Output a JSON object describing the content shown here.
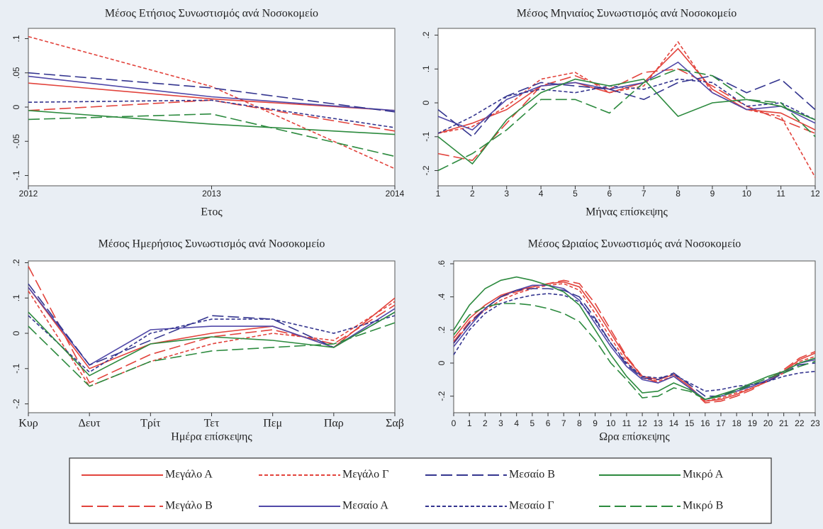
{
  "chart_data": [
    {
      "type": "line",
      "title": "Μέσος Ετήσιος Συνωστισμός ανά Νοσοκομείο",
      "x_label": "Ετος",
      "x": [
        2012,
        2013,
        2014
      ],
      "xlim": [
        2012,
        2014
      ],
      "xticks": [
        2012,
        2013,
        2014
      ],
      "ylim": [
        -0.115,
        0.115
      ],
      "yticks": [
        {
          "value": 0.1,
          "label": ".1"
        },
        {
          "value": 0.05,
          "label": ".05"
        },
        0,
        {
          "value": -0.05,
          "label": "-.05"
        },
        {
          "value": -0.1,
          "label": "-.1"
        }
      ],
      "series": [
        {
          "name": "Μεγάλο Α",
          "color": "#e2433c",
          "style": "solid",
          "values": [
            0.035,
            0.012,
            -0.005
          ]
        },
        {
          "name": "Μεγάλο Β",
          "color": "#e2433c",
          "style": "long",
          "values": [
            -0.005,
            0.01,
            -0.035
          ]
        },
        {
          "name": "Μεγάλο Γ",
          "color": "#e2433c",
          "style": "short",
          "values": [
            0.103,
            0.03,
            -0.09
          ]
        },
        {
          "name": "Μεσαίο Α",
          "color": "#5048a8",
          "style": "solid",
          "values": [
            0.045,
            0.015,
            -0.005
          ]
        },
        {
          "name": "Μεσαίο Β",
          "color": "#34358f",
          "style": "long",
          "values": [
            0.05,
            0.028,
            -0.007
          ]
        },
        {
          "name": "Μεσαίο Γ",
          "color": "#34358f",
          "style": "short",
          "values": [
            0.007,
            0.01,
            -0.03
          ]
        },
        {
          "name": "Μικρό Α",
          "color": "#2c8a3e",
          "style": "solid",
          "values": [
            -0.005,
            -0.025,
            -0.04
          ]
        },
        {
          "name": "Μικρό Β",
          "color": "#2c8a3e",
          "style": "long",
          "values": [
            -0.018,
            -0.01,
            -0.072
          ]
        }
      ]
    },
    {
      "type": "line",
      "title": "Μέσος Μηνιαίος Συνωστισμός ανά Νοσοκομείο",
      "x_label": "Μήνας επίσκεψης",
      "x": [
        1,
        2,
        3,
        4,
        5,
        6,
        7,
        8,
        9,
        10,
        11,
        12
      ],
      "xlim": [
        1,
        12
      ],
      "xticks": [
        1,
        2,
        3,
        4,
        5,
        6,
        7,
        8,
        9,
        10,
        11,
        12
      ],
      "ylim": [
        -0.245,
        0.22
      ],
      "yticks": [
        {
          "value": 0.2,
          "label": ".2"
        },
        {
          "value": 0.1,
          "label": ".1"
        },
        0,
        {
          "value": -0.1,
          "label": "-.1"
        },
        {
          "value": -0.2,
          "label": "-.2"
        }
      ],
      "series": [
        {
          "name": "Μεγάλο Α",
          "color": "#e2433c",
          "style": "solid",
          "values": [
            -0.09,
            -0.06,
            -0.02,
            0.05,
            0.06,
            0.03,
            0.06,
            0.16,
            0.04,
            -0.02,
            -0.03,
            -0.08
          ]
        },
        {
          "name": "Μεγάλο Β",
          "color": "#e2433c",
          "style": "long",
          "values": [
            -0.15,
            -0.17,
            -0.06,
            0.05,
            0.08,
            0.04,
            0.09,
            0.1,
            0.05,
            -0.01,
            -0.05,
            -0.09
          ]
        },
        {
          "name": "Μεγάλο Γ",
          "color": "#e2433c",
          "style": "short",
          "values": [
            -0.09,
            -0.07,
            -0.01,
            0.07,
            0.09,
            0.03,
            0.05,
            0.18,
            0.03,
            -0.02,
            -0.04,
            -0.22
          ]
        },
        {
          "name": "Μεσαίο Α",
          "color": "#5048a8",
          "style": "solid",
          "values": [
            -0.04,
            -0.08,
            0.01,
            0.05,
            0.06,
            0.04,
            0.06,
            0.12,
            0.03,
            -0.02,
            -0.01,
            -0.06
          ]
        },
        {
          "name": "Μεσαίο Β",
          "color": "#34358f",
          "style": "long",
          "values": [
            -0.02,
            -0.1,
            0.02,
            0.06,
            0.05,
            0.04,
            0.01,
            0.06,
            0.08,
            0.03,
            0.07,
            -0.02
          ]
        },
        {
          "name": "Μεσαίο Γ",
          "color": "#34358f",
          "style": "short",
          "values": [
            -0.09,
            -0.04,
            0.02,
            0.04,
            0.03,
            0.05,
            0.04,
            0.07,
            0.06,
            -0.01,
            0.0,
            -0.05
          ]
        },
        {
          "name": "Μικρό Α",
          "color": "#2c8a3e",
          "style": "solid",
          "values": [
            -0.1,
            -0.18,
            -0.05,
            0.03,
            0.07,
            0.05,
            0.07,
            -0.04,
            0.0,
            0.01,
            -0.01,
            -0.05
          ]
        },
        {
          "name": "Μικρό Β",
          "color": "#2c8a3e",
          "style": "long",
          "values": [
            -0.2,
            -0.15,
            -0.08,
            0.01,
            0.01,
            -0.03,
            0.06,
            0.1,
            0.08,
            0.01,
            0.0,
            -0.1
          ]
        }
      ]
    },
    {
      "type": "line",
      "title": "Μέσος Ημερήσιος Συνωστισμός ανά Νοσοκομείο",
      "x_label": "Ημέρα επίσκεψης",
      "categories": [
        "Κυρ",
        "Δευτ",
        "Τρίτ",
        "Τετ",
        "Πεμ",
        "Παρ",
        "Σαβ"
      ],
      "ylim": [
        -0.225,
        0.205
      ],
      "yticks": [
        {
          "value": 0.2,
          "label": ".2"
        },
        {
          "value": 0.1,
          "label": ".1"
        },
        0,
        {
          "value": -0.1,
          "label": "-.1"
        },
        {
          "value": -0.2,
          "label": "-.2"
        }
      ],
      "series": [
        {
          "name": "Μεγάλο Α",
          "color": "#e2433c",
          "style": "solid",
          "values": [
            0.13,
            -0.1,
            -0.03,
            0.0,
            0.02,
            -0.04,
            0.1
          ]
        },
        {
          "name": "Μεγάλο Β",
          "color": "#e2433c",
          "style": "long",
          "values": [
            0.19,
            -0.14,
            -0.06,
            -0.01,
            0.01,
            -0.03,
            0.08
          ]
        },
        {
          "name": "Μεγάλο Γ",
          "color": "#e2433c",
          "style": "short",
          "values": [
            0.12,
            -0.15,
            -0.08,
            -0.03,
            0.0,
            -0.02,
            0.09
          ]
        },
        {
          "name": "Μεσαίο Α",
          "color": "#5048a8",
          "style": "solid",
          "values": [
            0.13,
            -0.09,
            0.01,
            0.02,
            0.02,
            -0.04,
            0.07
          ]
        },
        {
          "name": "Μεσαίο Β",
          "color": "#34358f",
          "style": "long",
          "values": [
            0.14,
            -0.09,
            -0.02,
            0.05,
            0.04,
            -0.04,
            0.06
          ]
        },
        {
          "name": "Μεσαίο Γ",
          "color": "#34358f",
          "style": "short",
          "values": [
            0.05,
            -0.11,
            0.0,
            0.04,
            0.04,
            0.0,
            0.05
          ]
        },
        {
          "name": "Μικρό Α",
          "color": "#2c8a3e",
          "style": "solid",
          "values": [
            0.06,
            -0.12,
            -0.03,
            -0.01,
            -0.02,
            -0.04,
            0.06
          ]
        },
        {
          "name": "Μικρό Β",
          "color": "#2c8a3e",
          "style": "long",
          "values": [
            0.02,
            -0.15,
            -0.08,
            -0.05,
            -0.04,
            -0.03,
            0.03
          ]
        }
      ]
    },
    {
      "type": "line",
      "title": "Μέσος Ωριαίος Συνωστισμός ανά Νοσοκομείο",
      "x_label": "Ωρα επίσκεψης",
      "x": [
        0,
        1,
        2,
        3,
        4,
        5,
        6,
        7,
        8,
        9,
        10,
        11,
        12,
        13,
        14,
        15,
        16,
        17,
        18,
        19,
        20,
        21,
        22,
        23
      ],
      "xlim": [
        0,
        23
      ],
      "xticks": [
        0,
        1,
        2,
        3,
        4,
        5,
        6,
        7,
        8,
        9,
        10,
        11,
        12,
        13,
        14,
        15,
        16,
        17,
        18,
        19,
        20,
        21,
        22,
        23
      ],
      "ylim": [
        -0.3,
        0.617
      ],
      "yticks": [
        {
          "value": 0.6,
          "label": ".6"
        },
        {
          "value": 0.4,
          "label": ".4"
        },
        {
          "value": 0.2,
          "label": ".2"
        },
        0,
        {
          "value": -0.2,
          "label": "-.2"
        }
      ],
      "series": [
        {
          "name": "Μεγάλο Α",
          "color": "#e2433c",
          "style": "solid",
          "values": [
            0.15,
            0.27,
            0.35,
            0.41,
            0.44,
            0.46,
            0.48,
            0.49,
            0.46,
            0.33,
            0.18,
            0.03,
            -0.08,
            -0.1,
            -0.07,
            -0.14,
            -0.23,
            -0.22,
            -0.19,
            -0.15,
            -0.11,
            -0.05,
            0.02,
            0.06
          ]
        },
        {
          "name": "Μεγάλο Β",
          "color": "#e2433c",
          "style": "long",
          "values": [
            0.13,
            0.25,
            0.33,
            0.4,
            0.43,
            0.46,
            0.48,
            0.5,
            0.48,
            0.36,
            0.2,
            0.04,
            -0.08,
            -0.12,
            -0.08,
            -0.15,
            -0.24,
            -0.23,
            -0.2,
            -0.16,
            -0.1,
            -0.04,
            0.03,
            0.07
          ]
        },
        {
          "name": "Μεγάλο Γ",
          "color": "#e2433c",
          "style": "short",
          "values": [
            0.12,
            0.24,
            0.32,
            0.38,
            0.42,
            0.45,
            0.47,
            0.48,
            0.44,
            0.3,
            0.15,
            0.01,
            -0.09,
            -0.11,
            -0.08,
            -0.15,
            -0.23,
            -0.21,
            -0.18,
            -0.15,
            -0.11,
            -0.06,
            0.01,
            0.04
          ]
        },
        {
          "name": "Μεσαίο Α",
          "color": "#5048a8",
          "style": "solid",
          "values": [
            0.1,
            0.22,
            0.33,
            0.4,
            0.44,
            0.47,
            0.47,
            0.45,
            0.38,
            0.24,
            0.1,
            -0.02,
            -0.1,
            -0.12,
            -0.08,
            -0.15,
            -0.22,
            -0.2,
            -0.17,
            -0.14,
            -0.1,
            -0.05,
            0.0,
            0.02
          ]
        },
        {
          "name": "Μεσαίο Β",
          "color": "#34358f",
          "style": "long",
          "values": [
            0.12,
            0.24,
            0.33,
            0.4,
            0.44,
            0.45,
            0.45,
            0.44,
            0.4,
            0.27,
            0.12,
            -0.01,
            -0.09,
            -0.1,
            -0.06,
            -0.13,
            -0.2,
            -0.2,
            -0.16,
            -0.13,
            -0.11,
            -0.06,
            -0.01,
            0.0
          ]
        },
        {
          "name": "Μεσαίο Γ",
          "color": "#34358f",
          "style": "short",
          "values": [
            0.05,
            0.2,
            0.3,
            0.36,
            0.39,
            0.41,
            0.42,
            0.41,
            0.37,
            0.26,
            0.12,
            0.0,
            -0.08,
            -0.09,
            -0.07,
            -0.12,
            -0.17,
            -0.16,
            -0.14,
            -0.13,
            -0.11,
            -0.08,
            -0.06,
            -0.05
          ]
        },
        {
          "name": "Μικρό Α",
          "color": "#2c8a3e",
          "style": "solid",
          "values": [
            0.2,
            0.35,
            0.45,
            0.5,
            0.52,
            0.5,
            0.47,
            0.43,
            0.35,
            0.2,
            0.05,
            -0.08,
            -0.18,
            -0.17,
            -0.12,
            -0.16,
            -0.22,
            -0.19,
            -0.16,
            -0.12,
            -0.08,
            -0.05,
            0.0,
            0.03
          ]
        },
        {
          "name": "Μικρό Β",
          "color": "#2c8a3e",
          "style": "long",
          "values": [
            0.17,
            0.29,
            0.34,
            0.36,
            0.36,
            0.35,
            0.33,
            0.3,
            0.25,
            0.14,
            0.0,
            -0.1,
            -0.21,
            -0.2,
            -0.15,
            -0.17,
            -0.22,
            -0.2,
            -0.17,
            -0.13,
            -0.09,
            -0.06,
            -0.02,
            0.01
          ]
        }
      ]
    }
  ]
}
